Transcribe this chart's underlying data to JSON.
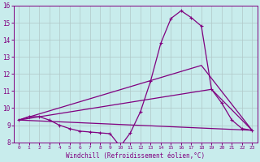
{
  "xlabel": "Windchill (Refroidissement éolien,°C)",
  "bg_color": "#c8ecec",
  "line_color": "#800080",
  "grid_color": "#b0c8c8",
  "xlim": [
    -0.5,
    23.5
  ],
  "ylim": [
    8,
    16
  ],
  "yticks": [
    8,
    9,
    10,
    11,
    12,
    13,
    14,
    15,
    16
  ],
  "xticks": [
    0,
    1,
    2,
    3,
    4,
    5,
    6,
    7,
    8,
    9,
    10,
    11,
    12,
    13,
    14,
    15,
    16,
    17,
    18,
    19,
    20,
    21,
    22,
    23
  ],
  "line1_x": [
    0,
    1,
    2,
    3,
    4,
    5,
    6,
    7,
    8,
    9,
    10,
    11,
    12,
    13,
    14,
    15,
    16,
    17,
    18,
    19,
    20,
    21,
    22,
    23
  ],
  "line1_y": [
    9.3,
    9.5,
    9.5,
    9.3,
    9.0,
    8.8,
    8.65,
    8.6,
    8.55,
    8.5,
    7.75,
    8.55,
    9.8,
    11.6,
    13.8,
    15.25,
    15.7,
    15.3,
    14.8,
    11.1,
    10.3,
    9.3,
    8.8,
    8.7
  ],
  "line2_x": [
    0,
    23
  ],
  "line2_y": [
    9.3,
    8.7
  ],
  "line3_x": [
    0,
    19,
    23
  ],
  "line3_y": [
    9.3,
    11.1,
    8.7
  ],
  "line4_x": [
    0,
    18,
    23
  ],
  "line4_y": [
    9.3,
    12.5,
    8.7
  ],
  "linewidth": 0.9
}
